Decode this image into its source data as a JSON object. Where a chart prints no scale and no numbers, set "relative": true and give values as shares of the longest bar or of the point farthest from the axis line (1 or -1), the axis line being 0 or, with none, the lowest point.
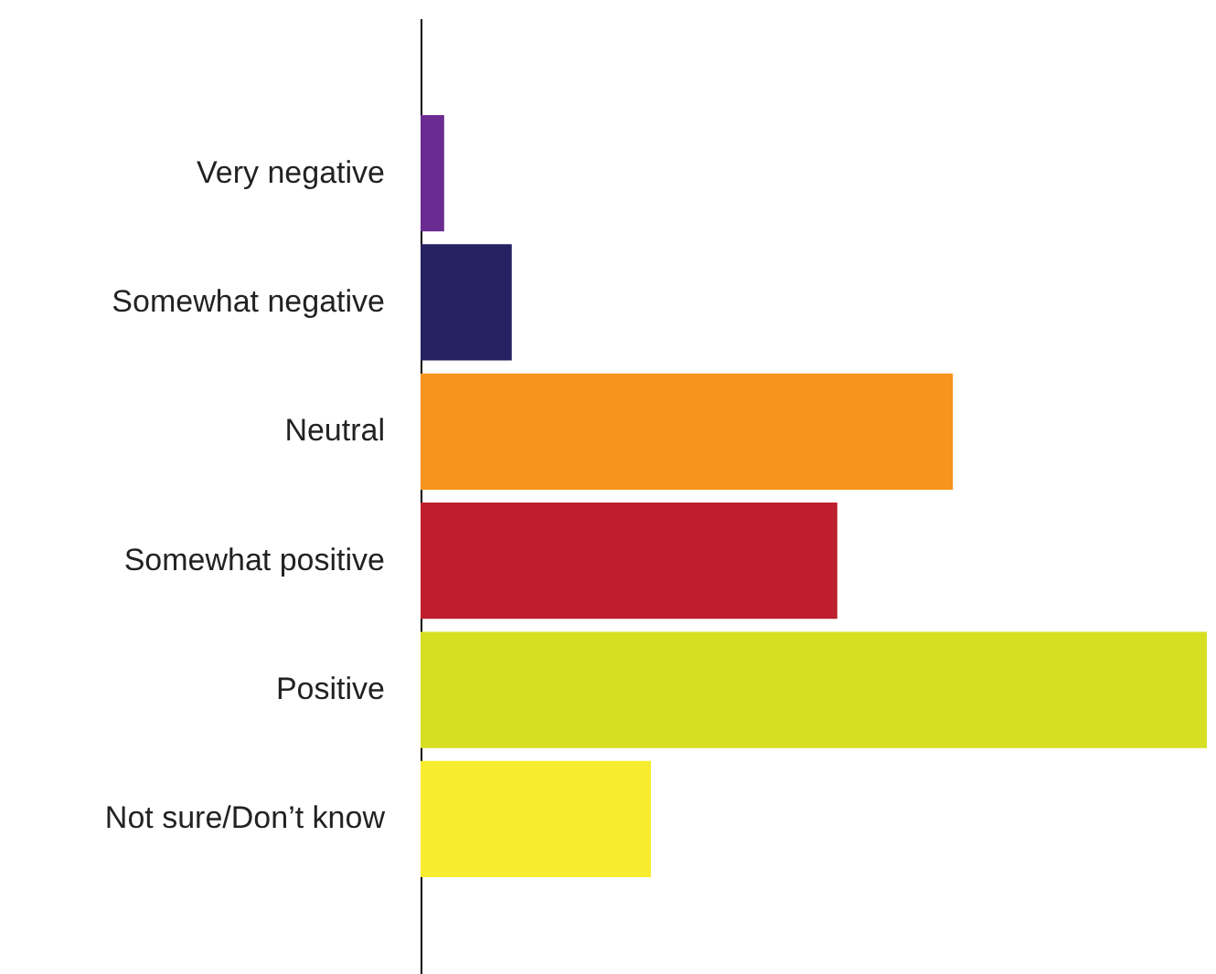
{
  "chart_data": {
    "type": "bar",
    "orientation": "horizontal",
    "relative": true,
    "categories": [
      "Very negative",
      "Somewhat negative",
      "Neutral",
      "Somewhat positive",
      "Positive",
      "Not sure/Don’t know"
    ],
    "values": [
      0.03,
      0.116,
      0.677,
      0.53,
      1,
      0.293
    ],
    "colors": [
      "#6a2c91",
      "#262262",
      "#f7941d",
      "#be1e2d",
      "#d7df23",
      "#f7ec2e"
    ]
  }
}
